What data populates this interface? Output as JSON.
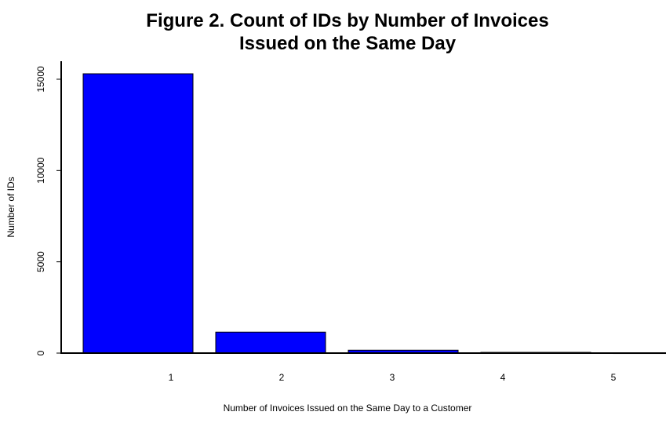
{
  "chart_data": {
    "type": "bar",
    "title": [
      "Figure 2. Count of IDs by Number of Invoices",
      "Issued on the Same Day"
    ],
    "xlabel": "Number of Invoices Issued on the Same Day to a Customer",
    "ylabel": "Number of IDs",
    "categories": [
      "1",
      "2",
      "3",
      "4",
      "5"
    ],
    "values": [
      15300,
      1150,
      160,
      40,
      20
    ],
    "ylim": [
      0,
      15800
    ],
    "yticks": [
      0,
      5000,
      10000,
      15000
    ],
    "ytick_labels": [
      "0",
      "5000",
      "10000",
      "15000"
    ],
    "grid": false,
    "bar_color": "#0000ff",
    "bar_edge_color": "#000000"
  }
}
